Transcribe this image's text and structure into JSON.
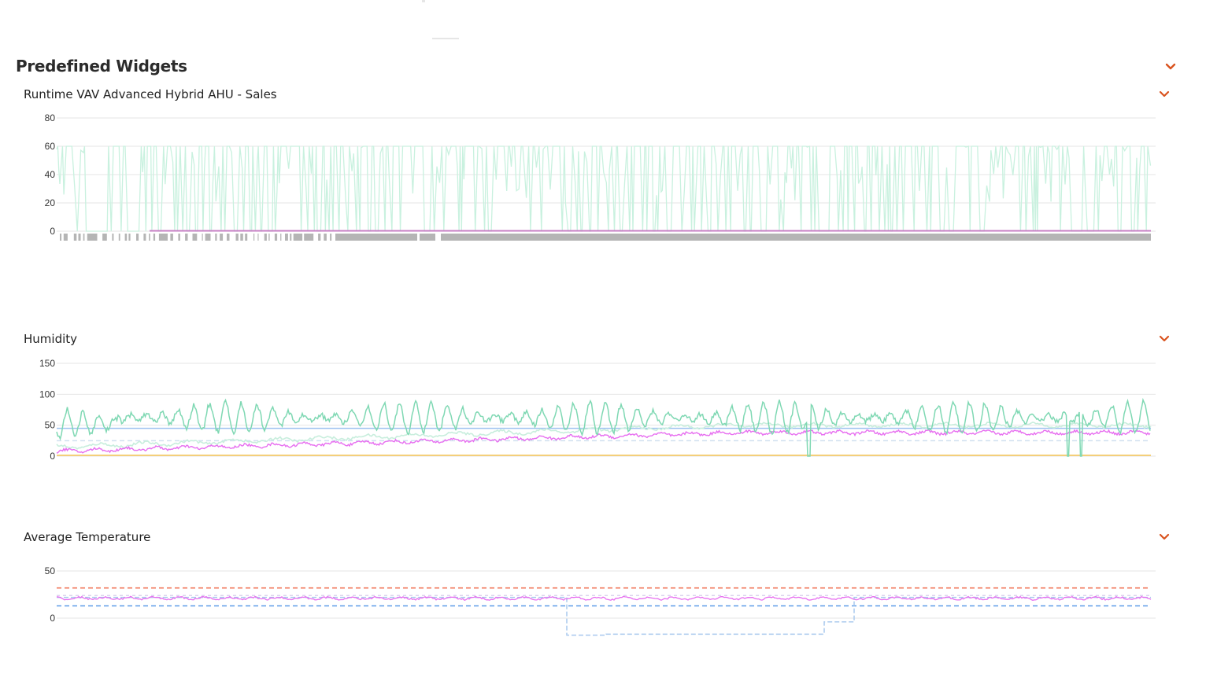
{
  "section": {
    "title": "Predefined Widgets"
  },
  "colors": {
    "accent": "#d9531e",
    "runtime_fill": "#c9f1df",
    "humidity_main": "#7fd8b3",
    "humidity_light": "#c8eedd",
    "magenta": "#e76ef0",
    "setpoint_blue": "#9cc0ef",
    "yellow": "#f4cf7a",
    "gray_bar": "#b5b5b5",
    "red_dashed": "#f06a4b",
    "blue_dashed": "#5b9be8"
  },
  "widgets": [
    {
      "id": "runtime",
      "title": "Runtime VAV Advanced Hybrid AHU - Sales",
      "chevron": "chevron-down-icon"
    },
    {
      "id": "humidity",
      "title": "Humidity",
      "chevron": "chevron-down-icon"
    },
    {
      "id": "avgtemp",
      "title": "Average Temperature",
      "chevron": "chevron-down-icon"
    }
  ],
  "chart_data": [
    {
      "type": "area",
      "chart": "runtime",
      "title": "Runtime VAV Advanced Hybrid AHU - Sales",
      "yticks": [
        "80",
        "60",
        "40",
        "20",
        "0"
      ],
      "ylim": [
        0,
        80
      ],
      "series": [
        {
          "values_range": [
            0,
            60
          ],
          "pattern": "oscillating on/off runtime"
        },
        {
          "values": [
            0
          ],
          "pattern": "flat baseline"
        }
      ],
      "status_bar": "gray segmented occupancy bar"
    },
    {
      "type": "line",
      "chart": "humidity",
      "title": "Humidity",
      "yticks": [
        "150",
        "100",
        "50",
        "0"
      ],
      "ylim": [
        0,
        150
      ],
      "series": [
        {
          "values_range": [
            30,
            95
          ],
          "pattern": "oscillating"
        },
        {
          "values_range": [
            15,
            55
          ],
          "pattern": "trending up"
        },
        {
          "values_range": [
            8,
            48
          ],
          "pattern": "trending up"
        },
        {
          "values": [
            45
          ],
          "pattern": "flat setpoint"
        },
        {
          "values": [
            25
          ],
          "pattern": "flat dashed"
        },
        {
          "values": [
            0
          ],
          "pattern": "flat"
        }
      ]
    },
    {
      "type": "line",
      "chart": "avgtemp",
      "title": "Average Temperature",
      "yticks": [
        "50",
        "0"
      ],
      "ylim": [
        -25,
        60
      ],
      "series": [
        {
          "values": [
            32
          ],
          "pattern": "upper limit dashed"
        },
        {
          "values": [
            13
          ],
          "pattern": "lower limit dashed"
        },
        {
          "values_range": [
            20,
            24
          ],
          "pattern": "zone temperature"
        },
        {
          "values_range": [
            -17,
            24
          ],
          "pattern": "stepped dashed"
        }
      ]
    }
  ]
}
